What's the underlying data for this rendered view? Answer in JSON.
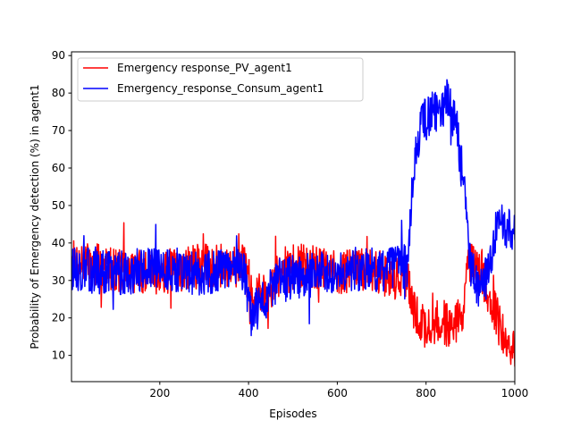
{
  "chart_data": {
    "type": "line",
    "title": "",
    "xlabel": "Episodes",
    "ylabel": "Probability of Emergency detection (%) in agent1",
    "xlim": [
      1,
      1000
    ],
    "ylim": [
      3,
      91
    ],
    "xticks": [
      200,
      400,
      600,
      800,
      1000
    ],
    "yticks": [
      10,
      20,
      30,
      40,
      50,
      60,
      70,
      80,
      90
    ],
    "legend": "top-left",
    "grid": false,
    "series": [
      {
        "name": "Emergency response_PV_agent1",
        "color": "#ff0000",
        "description_points": [
          [
            1,
            35
          ],
          [
            100,
            33
          ],
          [
            200,
            32
          ],
          [
            300,
            34
          ],
          [
            390,
            34
          ],
          [
            410,
            26
          ],
          [
            440,
            27
          ],
          [
            480,
            33
          ],
          [
            520,
            34
          ],
          [
            560,
            33
          ],
          [
            600,
            32
          ],
          [
            650,
            33
          ],
          [
            700,
            32
          ],
          [
            760,
            30
          ],
          [
            770,
            22
          ],
          [
            800,
            17
          ],
          [
            830,
            19
          ],
          [
            860,
            18
          ],
          [
            880,
            20
          ],
          [
            895,
            34
          ],
          [
            920,
            33
          ],
          [
            950,
            24
          ],
          [
            980,
            12
          ],
          [
            1000,
            11
          ]
        ],
        "noise": 6,
        "seed": 7
      },
      {
        "name": "Emergency_response_Consum_agent1",
        "color": "#0000ff",
        "description_points": [
          [
            1,
            33
          ],
          [
            100,
            32
          ],
          [
            200,
            33
          ],
          [
            300,
            32
          ],
          [
            390,
            33
          ],
          [
            405,
            20
          ],
          [
            430,
            24
          ],
          [
            470,
            30
          ],
          [
            520,
            31
          ],
          [
            600,
            33
          ],
          [
            700,
            33
          ],
          [
            760,
            34
          ],
          [
            770,
            58
          ],
          [
            790,
            72
          ],
          [
            820,
            75
          ],
          [
            850,
            78
          ],
          [
            870,
            70
          ],
          [
            885,
            55
          ],
          [
            900,
            35
          ],
          [
            920,
            26
          ],
          [
            940,
            32
          ],
          [
            960,
            45
          ],
          [
            980,
            44
          ],
          [
            1000,
            44
          ]
        ],
        "noise": 6,
        "seed": 13
      }
    ]
  }
}
